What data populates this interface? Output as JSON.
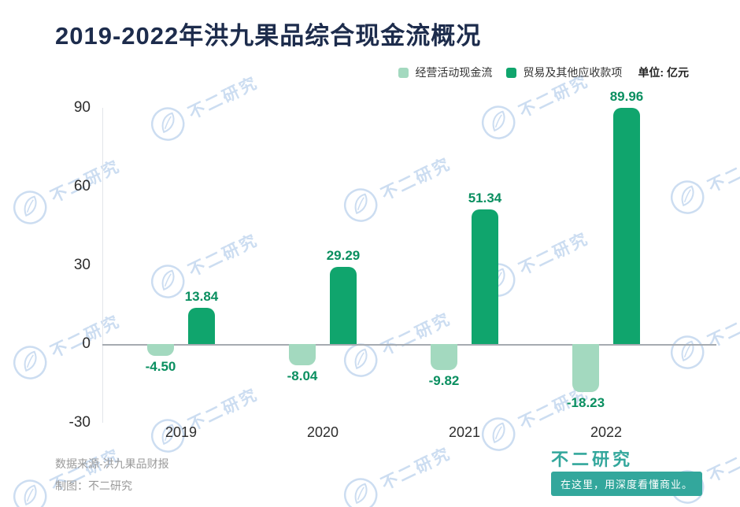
{
  "title": "2019-2022年洪九果品综合现金流概况",
  "legend": {
    "unit_label": "单位: 亿元"
  },
  "chart_data": {
    "type": "bar",
    "title": "2019-2022年洪九果品综合现金流概况",
    "unit": "亿元",
    "categories": [
      "2019",
      "2020",
      "2021",
      "2022"
    ],
    "series": [
      {
        "name": "经营活动现金流",
        "color": "#a3d9bf",
        "values": [
          -4.5,
          -8.04,
          -9.82,
          -18.23
        ],
        "labels": [
          "-4.50",
          "-8.04",
          "-9.82",
          "-18.23"
        ]
      },
      {
        "name": "贸易及其他应收款项",
        "color": "#10a56d",
        "values": [
          13.84,
          29.29,
          51.34,
          89.96
        ],
        "labels": [
          "13.84",
          "29.29",
          "51.34",
          "89.96"
        ]
      }
    ],
    "ylim": [
      -30,
      90
    ],
    "yticks": [
      90,
      60,
      30,
      0,
      -30
    ],
    "grid": false,
    "legend_position": "top-right"
  },
  "footer": {
    "source": "数据来源-洪九果品财报",
    "credit": "制图：不二研究",
    "brand": "不二研究",
    "slogan": "在这里，用深度看懂商业。"
  },
  "watermark_text": "不二研究",
  "colors": {
    "title": "#1d2c4c",
    "value_label": "#0a8f60",
    "axis_text": "#2d2d2d",
    "zero_line": "#a6abb1",
    "watermark": "#ccddf1",
    "brand_teal": "#33a79c",
    "muted_text": "#9a9a9a"
  }
}
